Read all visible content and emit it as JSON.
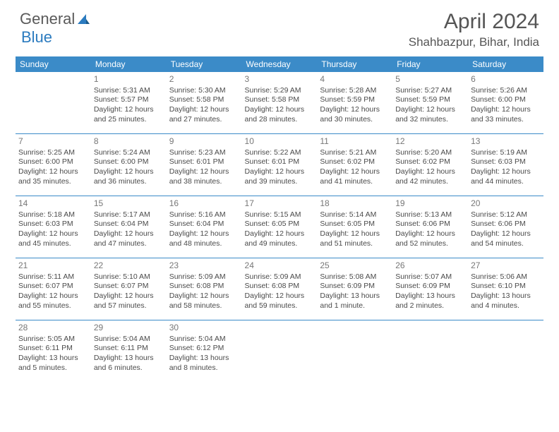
{
  "brand": {
    "part1": "General",
    "part2": "Blue"
  },
  "title": "April 2024",
  "location": "Shahbazpur, Bihar, India",
  "colors": {
    "header_bg": "#3b8bc8",
    "header_text": "#ffffff",
    "separator": "#3b8bc8",
    "body_text": "#4a4a4a",
    "daynum_text": "#777777",
    "title_text": "#555555",
    "page_bg": "#ffffff"
  },
  "typography": {
    "title_fontsize": 30,
    "location_fontsize": 17,
    "dayheader_fontsize": 12,
    "cell_fontsize": 10.5,
    "daynum_fontsize": 12
  },
  "day_headers": [
    "Sunday",
    "Monday",
    "Tuesday",
    "Wednesday",
    "Thursday",
    "Friday",
    "Saturday"
  ],
  "weeks": [
    [
      null,
      {
        "n": "1",
        "sr": "5:31 AM",
        "ss": "5:57 PM",
        "dl": "12 hours and 25 minutes."
      },
      {
        "n": "2",
        "sr": "5:30 AM",
        "ss": "5:58 PM",
        "dl": "12 hours and 27 minutes."
      },
      {
        "n": "3",
        "sr": "5:29 AM",
        "ss": "5:58 PM",
        "dl": "12 hours and 28 minutes."
      },
      {
        "n": "4",
        "sr": "5:28 AM",
        "ss": "5:59 PM",
        "dl": "12 hours and 30 minutes."
      },
      {
        "n": "5",
        "sr": "5:27 AM",
        "ss": "5:59 PM",
        "dl": "12 hours and 32 minutes."
      },
      {
        "n": "6",
        "sr": "5:26 AM",
        "ss": "6:00 PM",
        "dl": "12 hours and 33 minutes."
      }
    ],
    [
      {
        "n": "7",
        "sr": "5:25 AM",
        "ss": "6:00 PM",
        "dl": "12 hours and 35 minutes."
      },
      {
        "n": "8",
        "sr": "5:24 AM",
        "ss": "6:00 PM",
        "dl": "12 hours and 36 minutes."
      },
      {
        "n": "9",
        "sr": "5:23 AM",
        "ss": "6:01 PM",
        "dl": "12 hours and 38 minutes."
      },
      {
        "n": "10",
        "sr": "5:22 AM",
        "ss": "6:01 PM",
        "dl": "12 hours and 39 minutes."
      },
      {
        "n": "11",
        "sr": "5:21 AM",
        "ss": "6:02 PM",
        "dl": "12 hours and 41 minutes."
      },
      {
        "n": "12",
        "sr": "5:20 AM",
        "ss": "6:02 PM",
        "dl": "12 hours and 42 minutes."
      },
      {
        "n": "13",
        "sr": "5:19 AM",
        "ss": "6:03 PM",
        "dl": "12 hours and 44 minutes."
      }
    ],
    [
      {
        "n": "14",
        "sr": "5:18 AM",
        "ss": "6:03 PM",
        "dl": "12 hours and 45 minutes."
      },
      {
        "n": "15",
        "sr": "5:17 AM",
        "ss": "6:04 PM",
        "dl": "12 hours and 47 minutes."
      },
      {
        "n": "16",
        "sr": "5:16 AM",
        "ss": "6:04 PM",
        "dl": "12 hours and 48 minutes."
      },
      {
        "n": "17",
        "sr": "5:15 AM",
        "ss": "6:05 PM",
        "dl": "12 hours and 49 minutes."
      },
      {
        "n": "18",
        "sr": "5:14 AM",
        "ss": "6:05 PM",
        "dl": "12 hours and 51 minutes."
      },
      {
        "n": "19",
        "sr": "5:13 AM",
        "ss": "6:06 PM",
        "dl": "12 hours and 52 minutes."
      },
      {
        "n": "20",
        "sr": "5:12 AM",
        "ss": "6:06 PM",
        "dl": "12 hours and 54 minutes."
      }
    ],
    [
      {
        "n": "21",
        "sr": "5:11 AM",
        "ss": "6:07 PM",
        "dl": "12 hours and 55 minutes."
      },
      {
        "n": "22",
        "sr": "5:10 AM",
        "ss": "6:07 PM",
        "dl": "12 hours and 57 minutes."
      },
      {
        "n": "23",
        "sr": "5:09 AM",
        "ss": "6:08 PM",
        "dl": "12 hours and 58 minutes."
      },
      {
        "n": "24",
        "sr": "5:09 AM",
        "ss": "6:08 PM",
        "dl": "12 hours and 59 minutes."
      },
      {
        "n": "25",
        "sr": "5:08 AM",
        "ss": "6:09 PM",
        "dl": "13 hours and 1 minute."
      },
      {
        "n": "26",
        "sr": "5:07 AM",
        "ss": "6:09 PM",
        "dl": "13 hours and 2 minutes."
      },
      {
        "n": "27",
        "sr": "5:06 AM",
        "ss": "6:10 PM",
        "dl": "13 hours and 4 minutes."
      }
    ],
    [
      {
        "n": "28",
        "sr": "5:05 AM",
        "ss": "6:11 PM",
        "dl": "13 hours and 5 minutes."
      },
      {
        "n": "29",
        "sr": "5:04 AM",
        "ss": "6:11 PM",
        "dl": "13 hours and 6 minutes."
      },
      {
        "n": "30",
        "sr": "5:04 AM",
        "ss": "6:12 PM",
        "dl": "13 hours and 8 minutes."
      },
      null,
      null,
      null,
      null
    ]
  ],
  "labels": {
    "sunrise": "Sunrise:",
    "sunset": "Sunset:",
    "daylight": "Daylight:"
  }
}
